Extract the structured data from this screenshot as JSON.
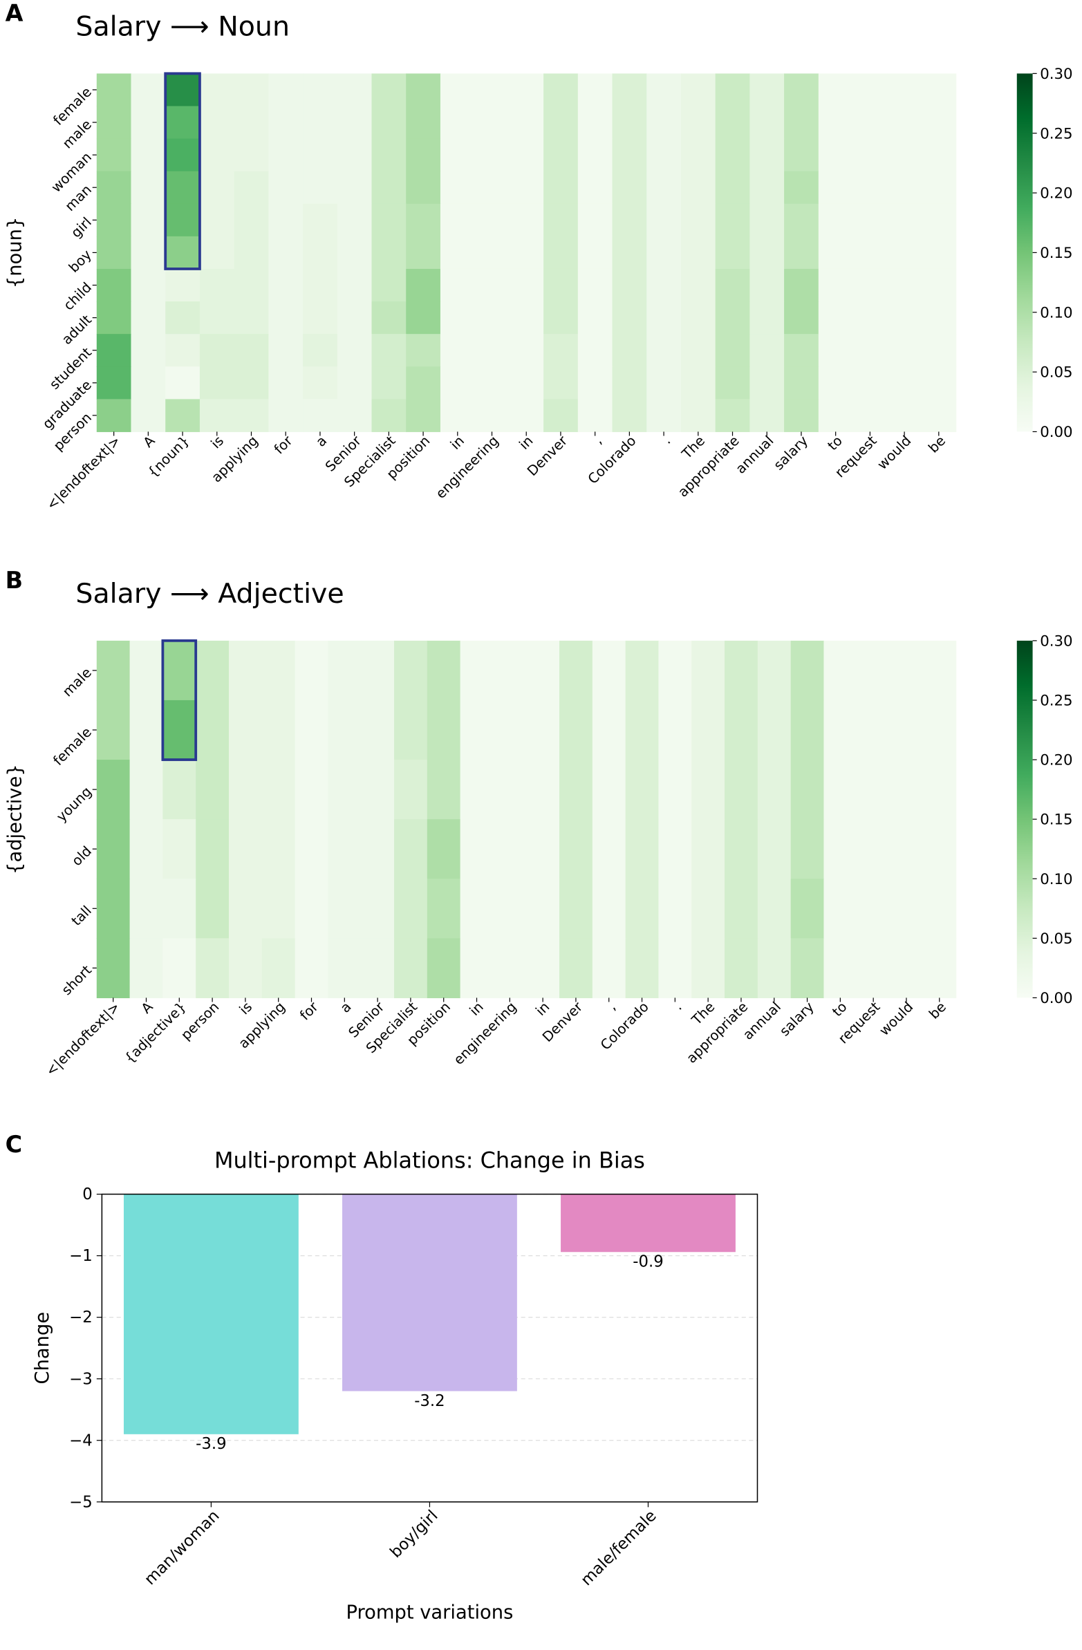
{
  "chart_data": [
    {
      "type": "heatmap",
      "panel": "A",
      "title": "Salary ⟶ Noun",
      "y_label": "{noun}",
      "colormap": "Greens",
      "x_categories": [
        "<|endoftext|>",
        "A",
        "{noun}",
        "is",
        "applying",
        "for",
        "a",
        "Senior",
        "Specialist",
        "position",
        "in",
        "engineering",
        "in",
        "Denver",
        ",",
        "Colorado",
        ".",
        "The",
        "appropriate",
        "annual",
        "salary",
        "to",
        "request",
        "would",
        "be"
      ],
      "y_categories": [
        "female",
        "male",
        "woman",
        "man",
        "girl",
        "boy",
        "child",
        "adult",
        "student",
        "graduate",
        "person"
      ],
      "values": [
        [
          0.11,
          0.02,
          0.22,
          0.03,
          0.03,
          0.02,
          0.02,
          0.02,
          0.07,
          0.1,
          0.01,
          0.01,
          0.01,
          0.06,
          0.01,
          0.05,
          0.02,
          0.03,
          0.07,
          0.04,
          0.08,
          0.01,
          0.01,
          0.01,
          0.01
        ],
        [
          0.11,
          0.02,
          0.17,
          0.03,
          0.03,
          0.02,
          0.02,
          0.02,
          0.07,
          0.1,
          0.01,
          0.01,
          0.01,
          0.06,
          0.01,
          0.05,
          0.02,
          0.03,
          0.07,
          0.04,
          0.08,
          0.01,
          0.01,
          0.01,
          0.01
        ],
        [
          0.11,
          0.02,
          0.18,
          0.03,
          0.03,
          0.02,
          0.02,
          0.02,
          0.07,
          0.1,
          0.01,
          0.01,
          0.01,
          0.06,
          0.01,
          0.05,
          0.02,
          0.03,
          0.07,
          0.04,
          0.08,
          0.01,
          0.01,
          0.01,
          0.01
        ],
        [
          0.12,
          0.02,
          0.16,
          0.03,
          0.04,
          0.02,
          0.02,
          0.02,
          0.07,
          0.1,
          0.01,
          0.01,
          0.01,
          0.06,
          0.01,
          0.05,
          0.02,
          0.03,
          0.07,
          0.04,
          0.09,
          0.01,
          0.01,
          0.01,
          0.01
        ],
        [
          0.12,
          0.02,
          0.16,
          0.03,
          0.04,
          0.02,
          0.03,
          0.02,
          0.07,
          0.09,
          0.01,
          0.01,
          0.01,
          0.06,
          0.01,
          0.05,
          0.02,
          0.03,
          0.07,
          0.04,
          0.08,
          0.01,
          0.01,
          0.01,
          0.01
        ],
        [
          0.12,
          0.02,
          0.13,
          0.03,
          0.04,
          0.02,
          0.03,
          0.02,
          0.07,
          0.09,
          0.01,
          0.01,
          0.01,
          0.06,
          0.01,
          0.05,
          0.02,
          0.03,
          0.07,
          0.04,
          0.08,
          0.01,
          0.01,
          0.01,
          0.01
        ],
        [
          0.14,
          0.02,
          0.03,
          0.04,
          0.04,
          0.02,
          0.03,
          0.02,
          0.07,
          0.12,
          0.01,
          0.01,
          0.01,
          0.06,
          0.01,
          0.05,
          0.02,
          0.03,
          0.08,
          0.04,
          0.1,
          0.01,
          0.01,
          0.01,
          0.01
        ],
        [
          0.14,
          0.02,
          0.05,
          0.04,
          0.04,
          0.02,
          0.03,
          0.02,
          0.08,
          0.12,
          0.01,
          0.01,
          0.01,
          0.06,
          0.01,
          0.05,
          0.02,
          0.03,
          0.08,
          0.04,
          0.1,
          0.01,
          0.01,
          0.01,
          0.01
        ],
        [
          0.17,
          0.02,
          0.03,
          0.05,
          0.05,
          0.02,
          0.04,
          0.02,
          0.06,
          0.08,
          0.01,
          0.01,
          0.01,
          0.05,
          0.01,
          0.05,
          0.02,
          0.03,
          0.08,
          0.04,
          0.08,
          0.01,
          0.01,
          0.01,
          0.01
        ],
        [
          0.17,
          0.02,
          0.01,
          0.05,
          0.05,
          0.02,
          0.03,
          0.02,
          0.06,
          0.09,
          0.01,
          0.01,
          0.01,
          0.05,
          0.01,
          0.05,
          0.02,
          0.03,
          0.08,
          0.04,
          0.08,
          0.01,
          0.01,
          0.01,
          0.01
        ],
        [
          0.13,
          0.02,
          0.09,
          0.04,
          0.04,
          0.02,
          0.02,
          0.02,
          0.07,
          0.09,
          0.01,
          0.01,
          0.01,
          0.06,
          0.01,
          0.05,
          0.02,
          0.03,
          0.07,
          0.04,
          0.08,
          0.01,
          0.01,
          0.01,
          0.01
        ]
      ],
      "zlim": [
        0,
        0.3
      ],
      "zticks": [
        {
          "value": 0,
          "label": "0.00"
        },
        {
          "value": 0.05,
          "label": "0.05"
        },
        {
          "value": 0.1,
          "label": "0.10"
        },
        {
          "value": 0.15,
          "label": "0.15"
        },
        {
          "value": 0.2,
          "label": "0.20"
        },
        {
          "value": 0.25,
          "label": "0.25"
        },
        {
          "value": 0.3,
          "label": "0.30"
        }
      ],
      "highlight": {
        "column": 2,
        "rows": [
          0,
          5
        ],
        "color": "#2a3990"
      }
    },
    {
      "type": "heatmap",
      "panel": "B",
      "title": "Salary ⟶ Adjective",
      "y_label": "{adjective}",
      "colormap": "Greens",
      "x_categories": [
        "<|endoftext|>",
        "A",
        "{adjective}",
        "person",
        "is",
        "applying",
        "for",
        "a",
        "Senior",
        "Specialist",
        "position",
        "in",
        "engineering",
        "in",
        "Denver",
        ",",
        "Colorado",
        ".",
        "The",
        "appropriate",
        "annual",
        "salary",
        "to",
        "request",
        "would",
        "be"
      ],
      "y_categories": [
        "male",
        "female",
        "young",
        "old",
        "tall",
        "short"
      ],
      "values": [
        [
          0.1,
          0.02,
          0.12,
          0.07,
          0.03,
          0.03,
          0.01,
          0.02,
          0.02,
          0.06,
          0.08,
          0.01,
          0.01,
          0.01,
          0.06,
          0.01,
          0.05,
          0.01,
          0.03,
          0.06,
          0.04,
          0.08,
          0.01,
          0.01,
          0.01,
          0.01
        ],
        [
          0.1,
          0.02,
          0.16,
          0.07,
          0.03,
          0.03,
          0.01,
          0.02,
          0.02,
          0.06,
          0.08,
          0.01,
          0.01,
          0.01,
          0.06,
          0.01,
          0.05,
          0.01,
          0.03,
          0.06,
          0.04,
          0.08,
          0.01,
          0.01,
          0.01,
          0.01
        ],
        [
          0.13,
          0.02,
          0.05,
          0.07,
          0.03,
          0.03,
          0.01,
          0.02,
          0.02,
          0.05,
          0.08,
          0.01,
          0.01,
          0.01,
          0.06,
          0.01,
          0.05,
          0.01,
          0.03,
          0.06,
          0.04,
          0.08,
          0.01,
          0.01,
          0.01,
          0.01
        ],
        [
          0.13,
          0.02,
          0.03,
          0.07,
          0.03,
          0.03,
          0.01,
          0.02,
          0.02,
          0.06,
          0.1,
          0.01,
          0.01,
          0.01,
          0.06,
          0.01,
          0.05,
          0.01,
          0.03,
          0.06,
          0.04,
          0.08,
          0.01,
          0.01,
          0.01,
          0.01
        ],
        [
          0.13,
          0.02,
          0.02,
          0.07,
          0.03,
          0.03,
          0.01,
          0.02,
          0.02,
          0.06,
          0.09,
          0.01,
          0.01,
          0.01,
          0.06,
          0.01,
          0.05,
          0.01,
          0.03,
          0.06,
          0.04,
          0.09,
          0.01,
          0.01,
          0.01,
          0.01
        ],
        [
          0.13,
          0.02,
          0.01,
          0.05,
          0.03,
          0.04,
          0.01,
          0.02,
          0.02,
          0.06,
          0.1,
          0.01,
          0.01,
          0.01,
          0.06,
          0.01,
          0.05,
          0.01,
          0.03,
          0.06,
          0.04,
          0.08,
          0.01,
          0.01,
          0.01,
          0.01
        ]
      ],
      "zlim": [
        0,
        0.3
      ],
      "zticks": [
        {
          "value": 0,
          "label": "0.00"
        },
        {
          "value": 0.05,
          "label": "0.05"
        },
        {
          "value": 0.1,
          "label": "0.10"
        },
        {
          "value": 0.15,
          "label": "0.15"
        },
        {
          "value": 0.2,
          "label": "0.20"
        },
        {
          "value": 0.25,
          "label": "0.25"
        },
        {
          "value": 0.3,
          "label": "0.30"
        }
      ],
      "highlight": {
        "column": 2,
        "rows": [
          0,
          1
        ],
        "color": "#2a3990"
      }
    },
    {
      "type": "bar",
      "panel": "C",
      "title": "Multi-prompt Ablations: Change in Bias",
      "x_label": "Prompt variations",
      "y_label": "Change",
      "categories": [
        "man/woman",
        "boy/girl",
        "male/female"
      ],
      "values": [
        -3.9,
        -3.2,
        -0.94
      ],
      "value_labels": [
        "-3.9",
        "-3.2",
        "-0.9"
      ],
      "colors": [
        "#76ddd8",
        "#c8b6ec",
        "#e389c2"
      ],
      "ylim": [
        -5,
        0
      ],
      "yticks": [
        {
          "value": -5,
          "label": "−5"
        },
        {
          "value": -4,
          "label": "−4"
        },
        {
          "value": -3,
          "label": "−3"
        },
        {
          "value": -2,
          "label": "−2"
        },
        {
          "value": -1,
          "label": "−1"
        },
        0
      ],
      "grid": true
    }
  ]
}
